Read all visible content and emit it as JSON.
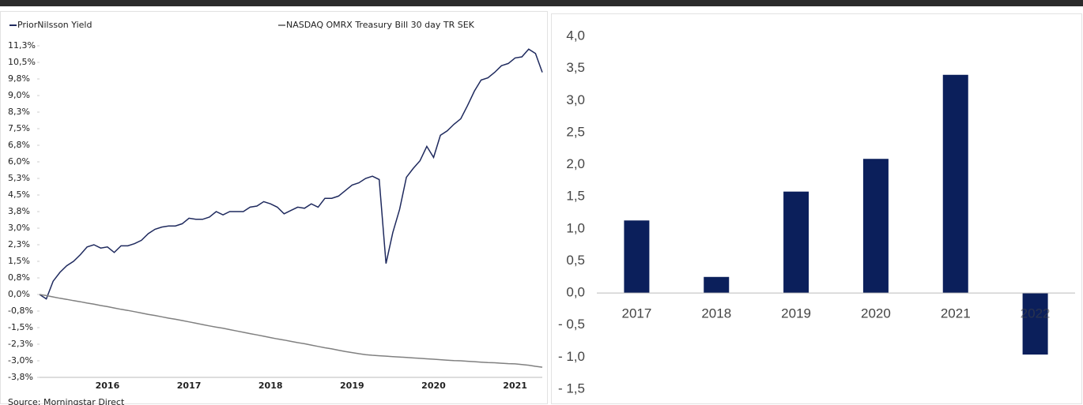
{
  "chart_data": [
    {
      "type": "line",
      "source": "Source: Morningstar Direct",
      "categories": [
        null,
        null,
        null,
        null,
        null,
        null,
        null,
        null,
        null,
        null,
        "2016",
        null,
        null,
        null,
        null,
        null,
        null,
        null,
        null,
        null,
        null,
        null,
        "2017",
        null,
        null,
        null,
        null,
        null,
        null,
        null,
        null,
        null,
        null,
        null,
        "2018",
        null,
        null,
        null,
        null,
        null,
        null,
        null,
        null,
        null,
        null,
        null,
        "2019",
        null,
        null,
        null,
        null,
        null,
        null,
        null,
        null,
        null,
        null,
        null,
        "2020",
        null,
        null,
        null,
        null,
        null,
        null,
        null,
        null,
        null,
        null,
        null,
        "2021",
        null,
        null,
        null,
        null
      ],
      "series": [
        {
          "name": "PriorNilsson Yield",
          "color": "#1f2a5e",
          "values": [
            0,
            -0.2,
            0.6,
            1.0,
            1.3,
            1.5,
            1.8,
            2.15,
            2.25,
            2.1,
            2.15,
            1.9,
            2.2,
            2.2,
            2.3,
            2.45,
            2.75,
            2.95,
            3.05,
            3.1,
            3.1,
            3.2,
            3.45,
            3.4,
            3.4,
            3.5,
            3.75,
            3.6,
            3.75,
            3.75,
            3.75,
            3.95,
            4.0,
            4.2,
            4.1,
            3.95,
            3.65,
            3.8,
            3.95,
            3.9,
            4.1,
            3.95,
            4.35,
            4.35,
            4.45,
            4.7,
            4.95,
            5.05,
            5.25,
            5.35,
            5.2,
            1.4,
            2.8,
            3.85,
            5.3,
            5.7,
            6.05,
            6.7,
            6.2,
            7.2,
            7.4,
            7.7,
            7.95,
            8.55,
            9.2,
            9.7,
            9.8,
            10.05,
            10.35,
            10.45,
            10.7,
            10.75,
            11.1,
            10.9,
            10.05
          ]
        },
        {
          "name": "NASDAQ OMRX Treasury Bill 30 day TR SEK",
          "color": "#808080",
          "values": [
            0,
            -0.05,
            -0.11,
            -0.17,
            -0.22,
            -0.28,
            -0.33,
            -0.39,
            -0.44,
            -0.5,
            -0.55,
            -0.61,
            -0.67,
            -0.72,
            -0.78,
            -0.84,
            -0.9,
            -0.95,
            -1.01,
            -1.07,
            -1.12,
            -1.18,
            -1.24,
            -1.3,
            -1.36,
            -1.42,
            -1.48,
            -1.53,
            -1.59,
            -1.65,
            -1.71,
            -1.77,
            -1.83,
            -1.89,
            -1.95,
            -2.01,
            -2.06,
            -2.12,
            -2.18,
            -2.23,
            -2.29,
            -2.35,
            -2.41,
            -2.46,
            -2.52,
            -2.58,
            -2.63,
            -2.68,
            -2.72,
            -2.75,
            -2.77,
            -2.79,
            -2.81,
            -2.83,
            -2.85,
            -2.87,
            -2.89,
            -2.91,
            -2.93,
            -2.95,
            -2.97,
            -2.99,
            -3.0,
            -3.02,
            -3.04,
            -3.06,
            -3.08,
            -3.09,
            -3.11,
            -3.13,
            -3.14,
            -3.17,
            -3.2,
            -3.25,
            -3.29
          ]
        }
      ],
      "ylim": [
        -3.75,
        11.25
      ],
      "yticks": [
        {
          "value": 11.25,
          "label": "11,3%"
        },
        {
          "value": 10.5,
          "label": "10,5%"
        },
        {
          "value": 9.75,
          "label": "9,8%"
        },
        {
          "value": 9.0,
          "label": "9,0%"
        },
        {
          "value": 8.25,
          "label": "8,3%"
        },
        {
          "value": 7.5,
          "label": "7,5%"
        },
        {
          "value": 6.75,
          "label": "6,8%"
        },
        {
          "value": 6.0,
          "label": "6,0%"
        },
        {
          "value": 5.25,
          "label": "5,3%"
        },
        {
          "value": 4.5,
          "label": "4,5%"
        },
        {
          "value": 3.75,
          "label": "3,8%"
        },
        {
          "value": 3.0,
          "label": "3,0%"
        },
        {
          "value": 2.25,
          "label": "2,3%"
        },
        {
          "value": 1.5,
          "label": "1,5%"
        },
        {
          "value": 0.75,
          "label": "0,8%"
        },
        {
          "value": 0,
          "label": "0,0%"
        },
        {
          "value": -0.75,
          "label": "-0,8%"
        },
        {
          "value": -1.5,
          "label": "-1,5%"
        },
        {
          "value": -2.25,
          "label": "-2,3%"
        },
        {
          "value": -3.0,
          "label": "-3,0%"
        },
        {
          "value": -3.75,
          "label": "-3,8%"
        }
      ],
      "legend": "top"
    },
    {
      "type": "bar",
      "categories": [
        "2017",
        "2018",
        "2019",
        "2020",
        "2021",
        "2022"
      ],
      "values": [
        1.13,
        0.25,
        1.58,
        2.09,
        3.4,
        -0.96
      ],
      "color": "#0b1f5b",
      "ylim": [
        -1.5,
        4.0
      ],
      "yticks": [
        {
          "value": 4.0,
          "label": "4,0"
        },
        {
          "value": 3.5,
          "label": "3,5"
        },
        {
          "value": 3.0,
          "label": "3,0"
        },
        {
          "value": 2.5,
          "label": "2,5"
        },
        {
          "value": 2.0,
          "label": "2,0"
        },
        {
          "value": 1.5,
          "label": "1,5"
        },
        {
          "value": 1.0,
          "label": "1,0"
        },
        {
          "value": 0.5,
          "label": "0,5"
        },
        {
          "value": 0,
          "label": "0,0"
        },
        {
          "value": -0.5,
          "label": "- 0,5"
        },
        {
          "value": -1.0,
          "label": "- 1,0"
        },
        {
          "value": -1.5,
          "label": "- 1,5"
        }
      ]
    }
  ]
}
